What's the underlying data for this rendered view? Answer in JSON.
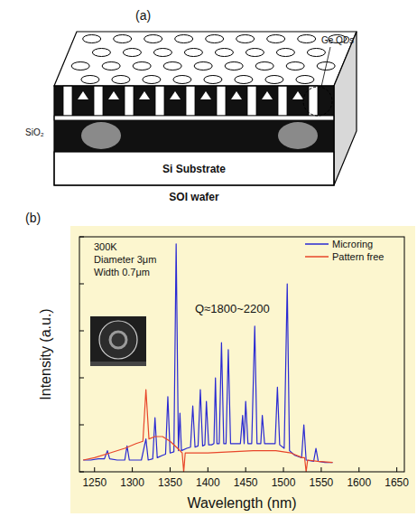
{
  "diagram": {
    "panel_label": "(a)",
    "labels": {
      "qd": "Ge QDs",
      "oxide": "SiO₂",
      "substrate": "Si Substrate",
      "wafer": "SOI wafer"
    }
  },
  "chart_data": {
    "type": "line",
    "panel_label": "(b)",
    "x_label": "Wavelength (nm)",
    "y_label": "Intensity (a.u.)",
    "annotations": [
      "300K",
      "Diameter 3μm",
      "Width 0.7μm",
      "Q≈1800~2200"
    ],
    "xlim": [
      1230,
      1660
    ],
    "xticks": [
      1250,
      1300,
      1350,
      1400,
      1450,
      1500,
      1550,
      1600,
      1650
    ],
    "ylim": [
      0,
      10
    ],
    "yticks": [
      0,
      2,
      4,
      6,
      8,
      10
    ],
    "tick_labels": "x",
    "legend": "upper right",
    "series": [
      {
        "name": "Microring",
        "color": "#2a2ad2",
        "x": [
          1235,
          1245,
          1255,
          1263,
          1267,
          1270,
          1280,
          1290,
          1293,
          1296,
          1305,
          1312,
          1318,
          1321,
          1327,
          1330,
          1333,
          1340,
          1344,
          1347,
          1350,
          1355,
          1358,
          1361,
          1363,
          1365,
          1372,
          1377,
          1380,
          1383,
          1387,
          1390,
          1393,
          1396,
          1398,
          1401,
          1405,
          1408,
          1410,
          1412,
          1415,
          1418,
          1421,
          1424,
          1427,
          1430,
          1437,
          1443,
          1446,
          1448,
          1450,
          1453,
          1458,
          1462,
          1465,
          1470,
          1472,
          1475,
          1482,
          1489,
          1492,
          1495,
          1501,
          1505,
          1508,
          1515,
          1524,
          1527,
          1530,
          1540,
          1543,
          1546,
          1555,
          1565
        ],
        "values": [
          0.5,
          0.5,
          0.55,
          0.55,
          0.9,
          0.55,
          0.5,
          0.5,
          1.1,
          0.5,
          0.5,
          0.5,
          1.4,
          0.5,
          0.55,
          2.3,
          0.6,
          0.7,
          0.75,
          3.2,
          0.8,
          0.85,
          9.7,
          0.9,
          2.5,
          0.9,
          1.0,
          1.05,
          2.8,
          1.05,
          1.1,
          3.5,
          1.1,
          1.15,
          3.0,
          1.15,
          1.15,
          1.2,
          4.0,
          1.2,
          1.2,
          5.5,
          1.2,
          1.2,
          5.2,
          1.2,
          1.2,
          1.2,
          2.4,
          1.2,
          3.0,
          1.2,
          1.2,
          6.2,
          1.2,
          1.2,
          2.4,
          1.2,
          1.2,
          1.2,
          3.6,
          1.15,
          1.0,
          8.0,
          0.9,
          0.7,
          0.6,
          2.0,
          0.5,
          0.45,
          1.0,
          0.45,
          0.4,
          0.4
        ]
      },
      {
        "name": "Pattern free",
        "color": "#e8462a",
        "x": [
          1235,
          1250,
          1270,
          1290,
          1305,
          1314,
          1318,
          1322,
          1330,
          1340,
          1350,
          1360,
          1366,
          1368,
          1370,
          1380,
          1400,
          1430,
          1460,
          1490,
          1510,
          1525,
          1528,
          1530,
          1532,
          1545,
          1565
        ],
        "values": [
          0.5,
          0.6,
          0.8,
          1.0,
          1.2,
          1.3,
          3.5,
          1.4,
          1.5,
          1.5,
          1.3,
          1.0,
          0.8,
          0,
          0.8,
          0.8,
          0.8,
          0.85,
          0.9,
          0.9,
          0.8,
          0.6,
          0.6,
          0,
          0.5,
          0.45,
          0.4
        ]
      }
    ]
  }
}
